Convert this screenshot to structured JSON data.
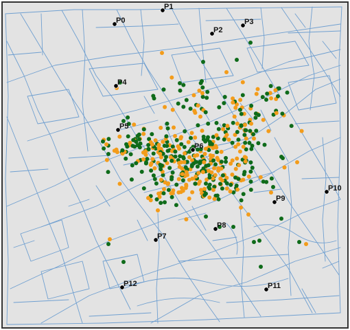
{
  "map": {
    "colors": {
      "background": "#e3e3e3",
      "street": "#6f9fd0",
      "border": "#333333",
      "pump": "#000000",
      "death_orange": "#f39c1b",
      "death_green": "#0f6b1a"
    },
    "pumps": [
      {
        "label": "P0"
      },
      {
        "label": "P1"
      },
      {
        "label": "P2"
      },
      {
        "label": "P3"
      },
      {
        "label": "P4"
      },
      {
        "label": "P5"
      },
      {
        "label": "P6"
      },
      {
        "label": "P7"
      },
      {
        "label": "P8"
      },
      {
        "label": "P9"
      },
      {
        "label": "P10"
      },
      {
        "label": "P11"
      },
      {
        "label": "P12"
      }
    ]
  }
}
